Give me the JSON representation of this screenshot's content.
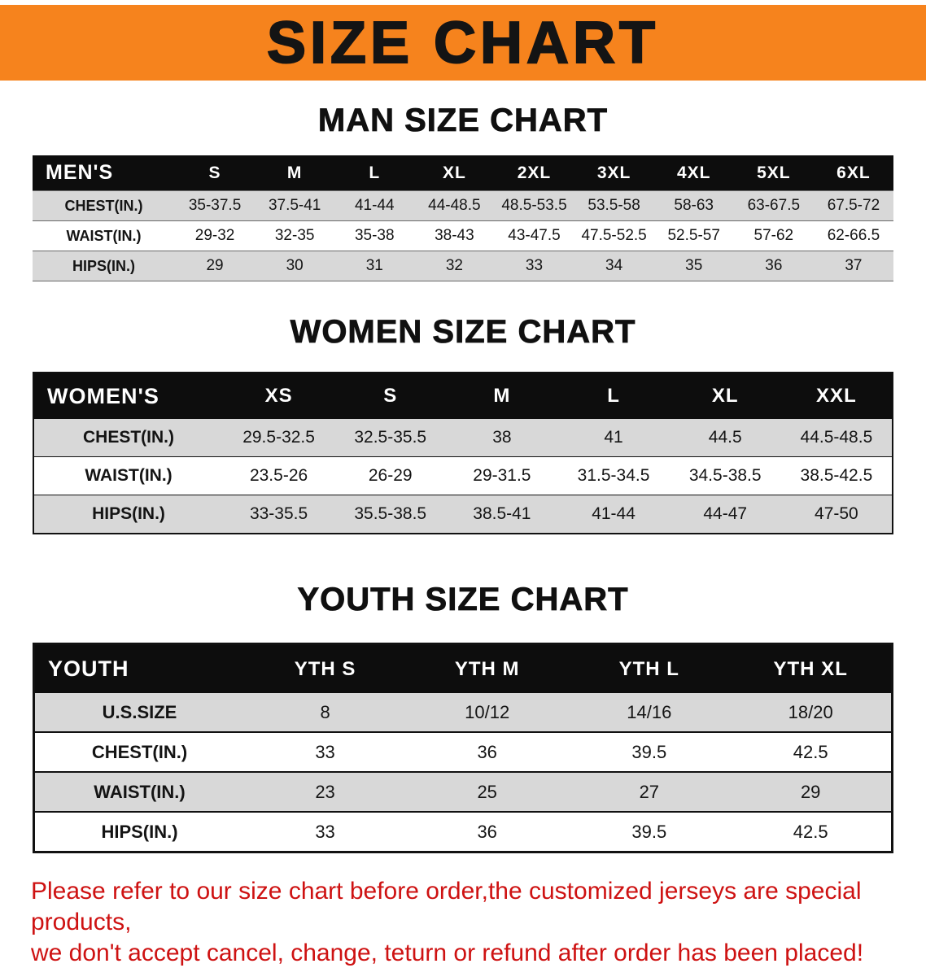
{
  "banner": {
    "title": "SIZE CHART"
  },
  "colors": {
    "banner_bg": "#F6831D",
    "table_header_bg": "#0D0D0D",
    "table_header_text": "#FFFFFF",
    "row_alt_bg": "#D8D8D8",
    "note_red": "#CE1212"
  },
  "sections": [
    {
      "heading": "MAN SIZE CHART",
      "table": {
        "header": [
          "MEN'S",
          "S",
          "M",
          "L",
          "XL",
          "2XL",
          "3XL",
          "4XL",
          "5XL",
          "6XL"
        ],
        "rows": [
          [
            "CHEST(IN.)",
            "35-37.5",
            "37.5-41",
            "41-44",
            "44-48.5",
            "48.5-53.5",
            "53.5-58",
            "58-63",
            "63-67.5",
            "67.5-72"
          ],
          [
            "WAIST(IN.)",
            "29-32",
            "32-35",
            "35-38",
            "38-43",
            "43-47.5",
            "47.5-52.5",
            "52.5-57",
            "57-62",
            "62-66.5"
          ],
          [
            "HIPS(IN.)",
            "29",
            "30",
            "31",
            "32",
            "33",
            "34",
            "35",
            "36",
            "37"
          ]
        ]
      }
    },
    {
      "heading": "WOMEN SIZE CHART",
      "table": {
        "header": [
          "WOMEN'S",
          "XS",
          "S",
          "M",
          "L",
          "XL",
          "XXL"
        ],
        "rows": [
          [
            "CHEST(IN.)",
            "29.5-32.5",
            "32.5-35.5",
            "38",
            "41",
            "44.5",
            "44.5-48.5"
          ],
          [
            "WAIST(IN.)",
            "23.5-26",
            "26-29",
            "29-31.5",
            "31.5-34.5",
            "34.5-38.5",
            "38.5-42.5"
          ],
          [
            "HIPS(IN.)",
            "33-35.5",
            "35.5-38.5",
            "38.5-41",
            "41-44",
            "44-47",
            "47-50"
          ]
        ]
      }
    },
    {
      "heading": "YOUTH SIZE CHART",
      "table": {
        "header": [
          "YOUTH",
          "YTH S",
          "YTH M",
          "YTH L",
          "YTH XL"
        ],
        "rows": [
          [
            "U.S.SIZE",
            "8",
            "10/12",
            "14/16",
            "18/20"
          ],
          [
            "CHEST(IN.)",
            "33",
            "36",
            "39.5",
            "42.5"
          ],
          [
            "WAIST(IN.)",
            "23",
            "25",
            "27",
            "29"
          ],
          [
            "HIPS(IN.)",
            "33",
            "36",
            "39.5",
            "42.5"
          ]
        ]
      }
    }
  ],
  "note": {
    "line1": "Please refer to our size chart before order,the customized jerseys are special products,",
    "line2": "we don't accept cancel, change, teturn or refund after order has been placed!"
  }
}
